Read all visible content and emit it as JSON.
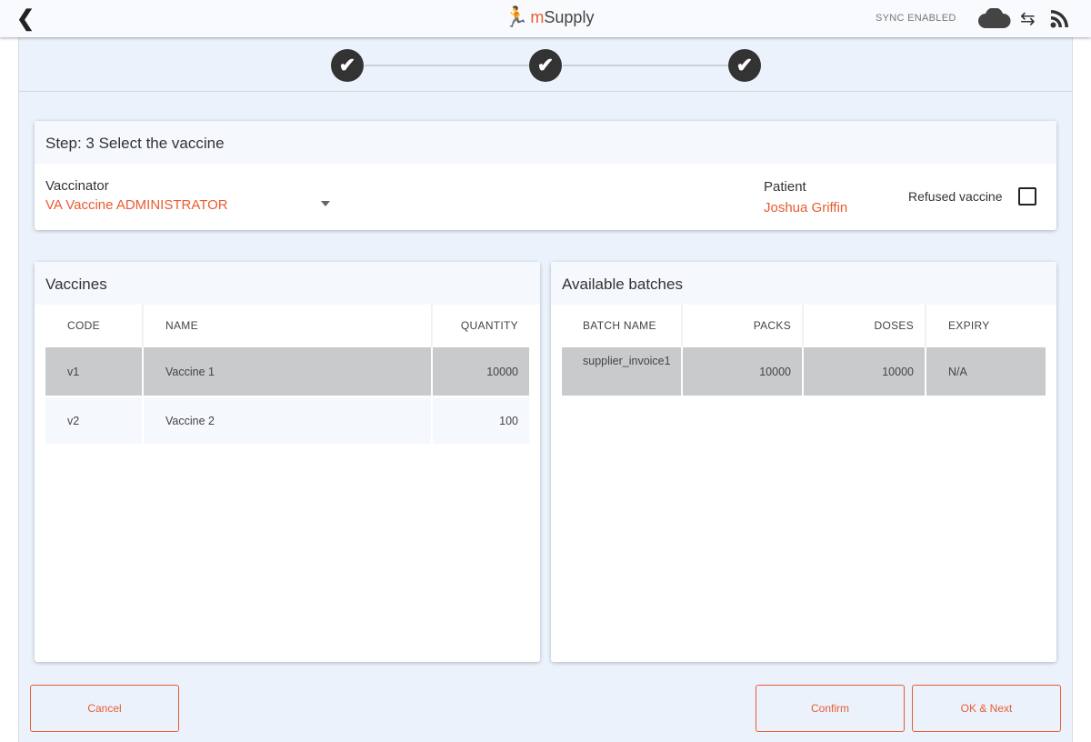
{
  "header": {
    "back_icon": "chevron-left-icon",
    "logo_text": "mSupply",
    "sync_status": "SYNC ENABLED",
    "icons": [
      "cloud-icon",
      "sync-arrows-icon",
      "rss-icon"
    ]
  },
  "stepper": {
    "steps": [
      {
        "status": "complete"
      },
      {
        "status": "complete"
      },
      {
        "status": "complete"
      }
    ]
  },
  "step_card": {
    "title": "Step: 3 Select the vaccine",
    "vaccinator_label": "Vaccinator",
    "vaccinator_value": "VA Vaccine ADMINISTRATOR",
    "patient_label": "Patient",
    "patient_value": "Joshua Griffin",
    "refused_label": "Refused vaccine",
    "refused_checked": false
  },
  "vaccines": {
    "title": "Vaccines",
    "columns": [
      "CODE",
      "NAME",
      "QUANTITY"
    ],
    "rows": [
      {
        "code": "v1",
        "name": "Vaccine 1",
        "quantity": "10000",
        "selected": true
      },
      {
        "code": "v2",
        "name": "Vaccine 2",
        "quantity": "100",
        "selected": false
      }
    ]
  },
  "batches": {
    "title": "Available batches",
    "columns": [
      "BATCH NAME",
      "PACKS",
      "DOSES",
      "EXPIRY"
    ],
    "rows": [
      {
        "batch_name": "supplier_invoice1",
        "packs": "10000",
        "doses": "10000",
        "expiry": "N/A",
        "selected": true
      }
    ]
  },
  "buttons": {
    "cancel": "Cancel",
    "confirm": "Confirm",
    "ok_next": "OK & Next"
  },
  "colors": {
    "accent": "#e95c30",
    "selected_row": "#c8cacb",
    "background": "#ebf2fc"
  }
}
